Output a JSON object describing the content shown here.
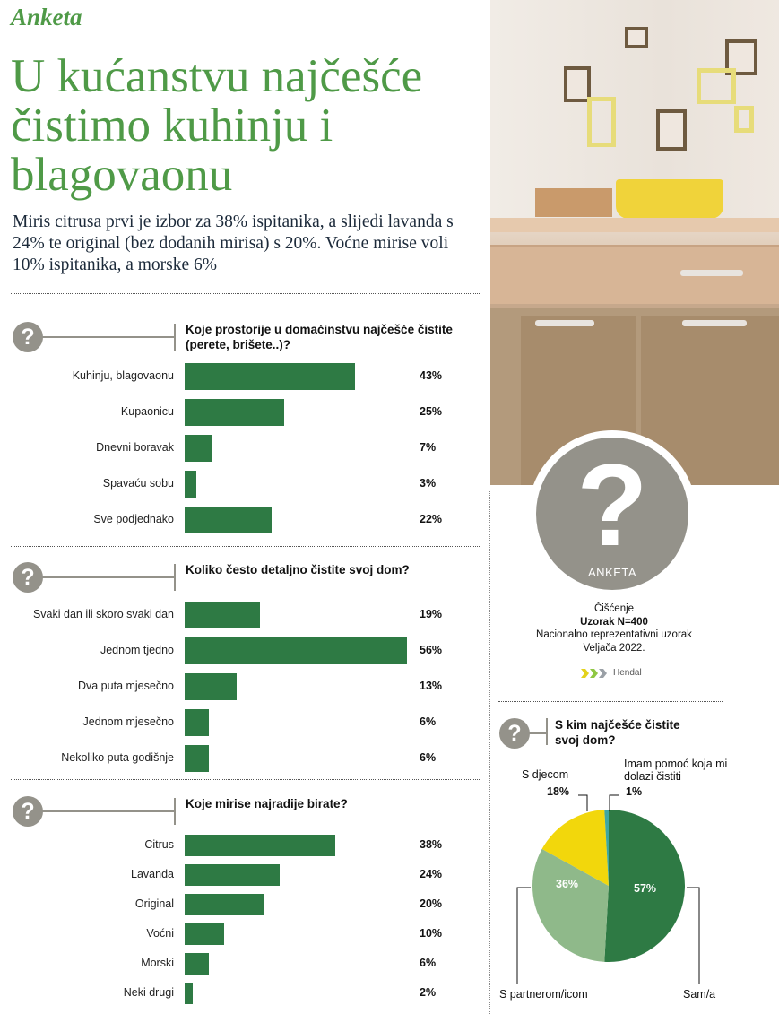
{
  "header": {
    "brand": "Anketa",
    "headline": "U kućanstvu najčešće čistimo kuhinju i blagovaonu",
    "lead": "Miris citrusa prvi je izbor za 38% ispitanika, a slijedi lavanda s 24% te original (bez dodanih mirisa) s 20%. Voćne mirise voli 10% ispitanika, a morske 6%"
  },
  "badge": {
    "symbol": "?",
    "label": "ANKETA"
  },
  "survey_info": {
    "topic": "Čišćenje",
    "sample": "Uzorak N=400",
    "sample_type": "Nacionalno reprezentativni uzorak",
    "date": "Veljača 2022.",
    "agency": "Hendal"
  },
  "icons": {
    "question": "question-mark-icon"
  },
  "colors": {
    "accent": "#4f9a47",
    "bar": "#2e7a44",
    "icon": "#94928a",
    "pie_light": "#8fb98a",
    "pie_yellow": "#f2d70c",
    "pie_teal": "#3fa7a0"
  },
  "chart_data": [
    {
      "type": "bar",
      "orientation": "horizontal",
      "title": "Koje prostorije u domaćinstvu najčešće čistite (perete, brišete..)?",
      "categories": [
        "Kuhinju,  blagovaonu",
        "Kupaonicu",
        "Dnevni boravak",
        "Spavaću sobu",
        "Sve podjednako"
      ],
      "values": [
        43,
        25,
        7,
        3,
        22
      ],
      "value_labels": [
        "43%",
        "25%",
        "7%",
        "3%",
        "22%"
      ],
      "unit": "%"
    },
    {
      "type": "bar",
      "orientation": "horizontal",
      "title": "Koliko često detaljno čistite svoj dom?",
      "categories": [
        "Svaki dan ili skoro svaki dan",
        "Jednom tjedno",
        "Dva puta mjesečno",
        "Jednom mjesečno",
        "Nekoliko puta godišnje"
      ],
      "values": [
        19,
        56,
        13,
        6,
        6
      ],
      "value_labels": [
        "19%",
        "56%",
        "13%",
        "6%",
        "6%"
      ],
      "unit": "%"
    },
    {
      "type": "bar",
      "orientation": "horizontal",
      "title": "Koje mirise najradije birate?",
      "categories": [
        "Citrus",
        "Lavanda",
        "Original",
        "Voćni",
        "Morski",
        "Neki drugi"
      ],
      "values": [
        38,
        24,
        20,
        10,
        6,
        2
      ],
      "value_labels": [
        "38%",
        "24%",
        "20%",
        "10%",
        "6%",
        "2%"
      ],
      "unit": "%"
    },
    {
      "type": "pie",
      "title": "S kim najčešće čistite svoj dom?",
      "slices": [
        {
          "label": "Sam/a",
          "value": 57,
          "value_label": "57%"
        },
        {
          "label": "S partnerom/icom",
          "value": 36,
          "value_label": "36%"
        },
        {
          "label": "S djecom",
          "value": 18,
          "value_label": "18%"
        },
        {
          "label": "Imam  pomoć koja mi dolazi čistiti",
          "value": 1,
          "value_label": "1%"
        }
      ]
    }
  ]
}
